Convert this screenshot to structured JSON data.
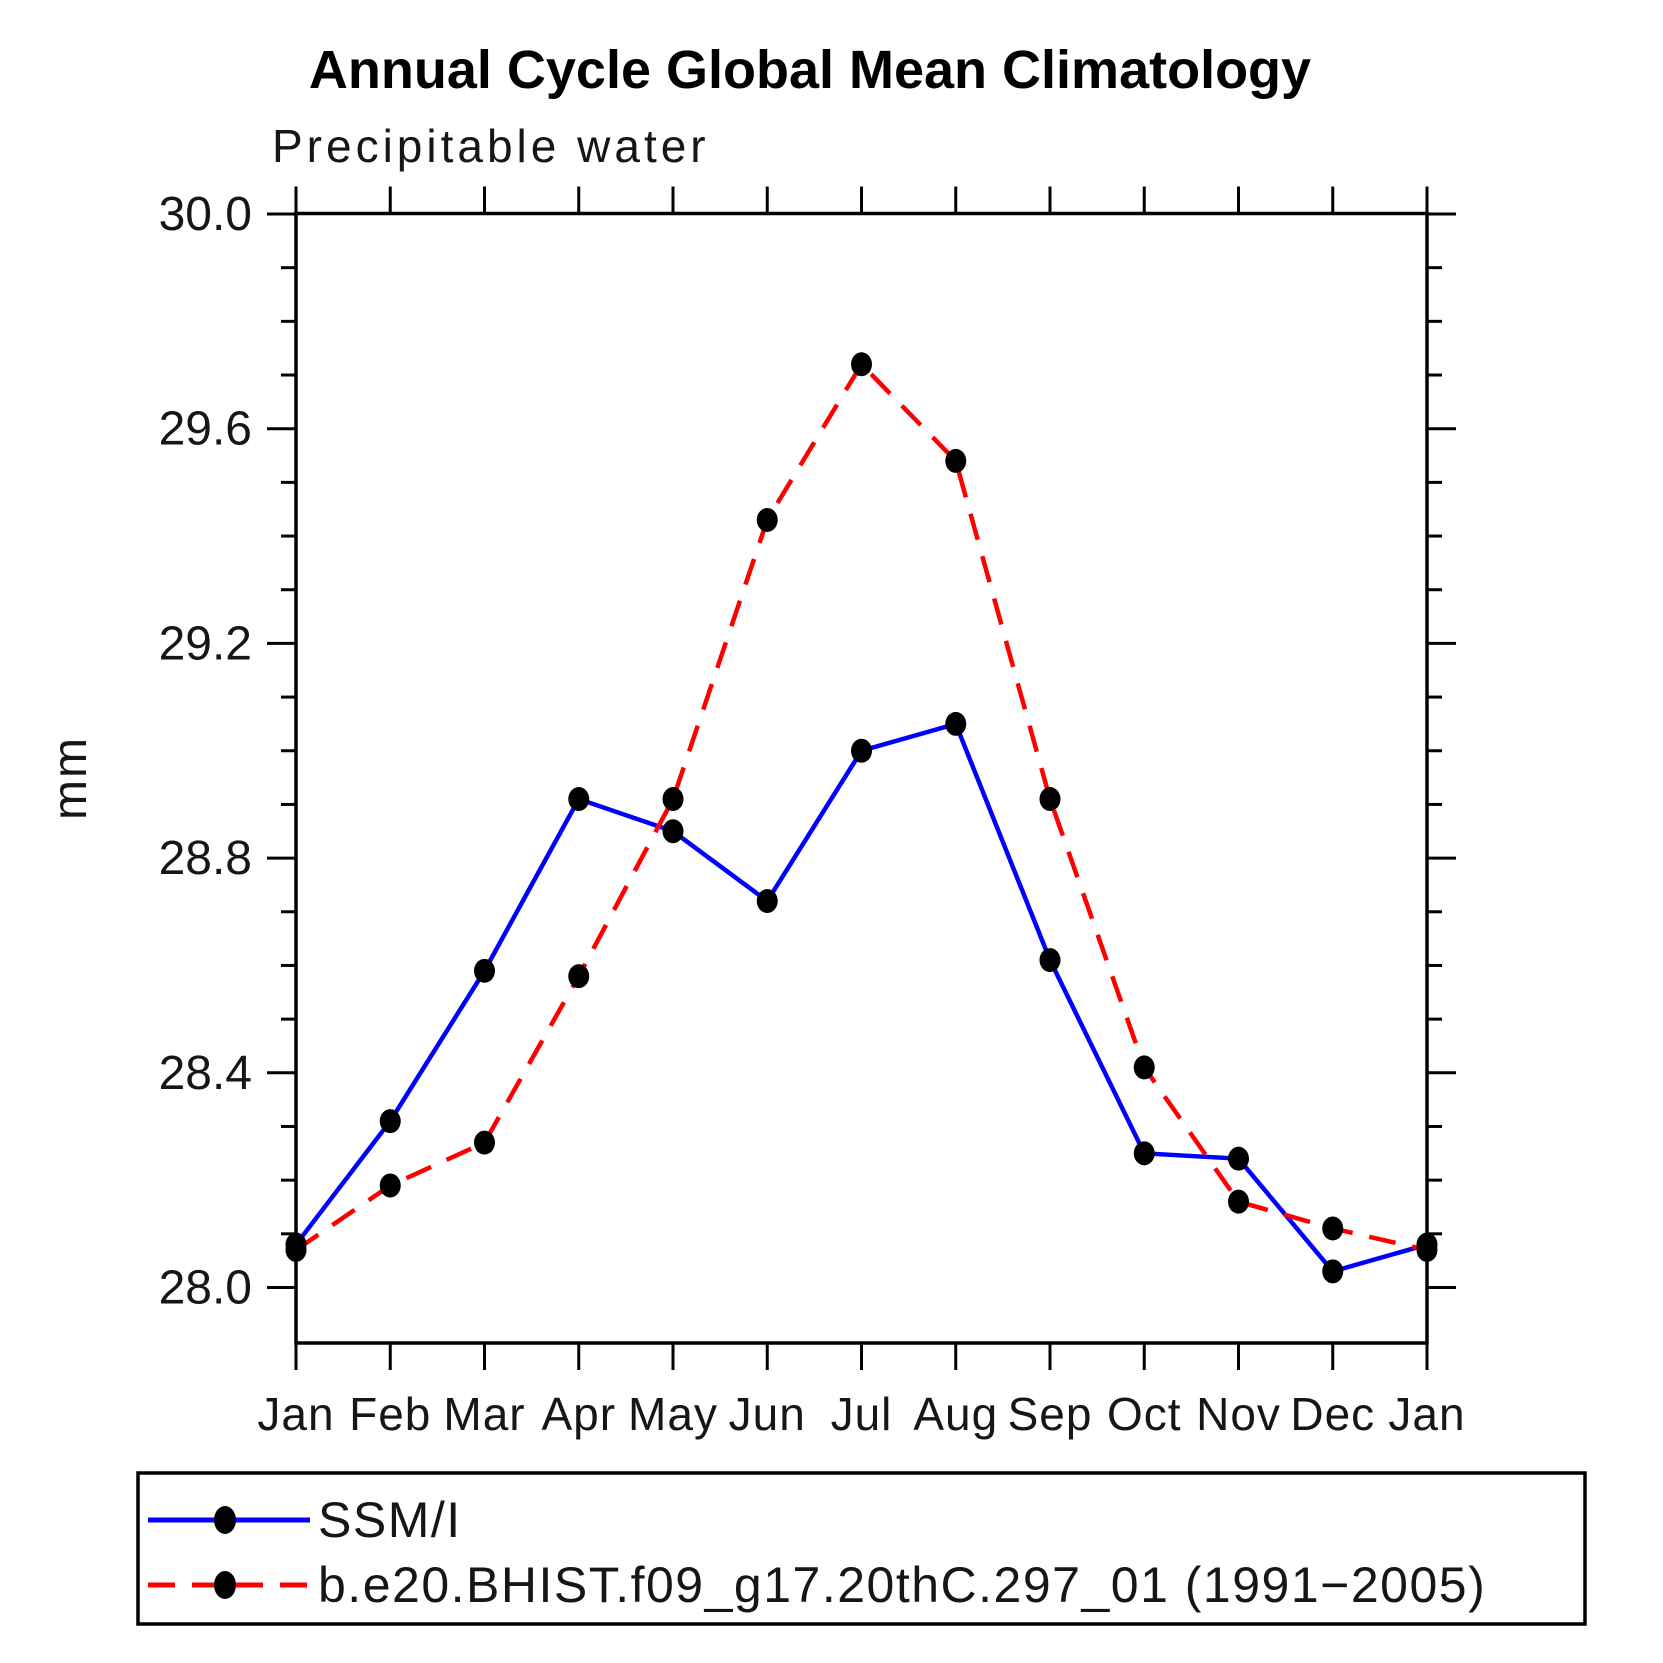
{
  "figure": {
    "title": "Annual Cycle Global Mean Climatology",
    "subtitle": "Precipitable water"
  },
  "axes": {
    "ylabel": "mm"
  },
  "legend": {
    "items": [
      {
        "label": "SSM/I"
      },
      {
        "label": "b.e20.BHIST.f09_g17.20thC.297_01 (1991−2005)"
      }
    ]
  },
  "colors": {
    "obs_line": "#0000ff",
    "model_line": "#ff0000",
    "marker": "#000000",
    "axis": "#000000",
    "background": "#ffffff"
  },
  "chart_data": {
    "type": "line",
    "title": "Annual Cycle Global Mean Climatology",
    "subtitle": "Precipitable water",
    "xlabel": "",
    "ylabel": "mm",
    "categories": [
      "Jan",
      "Feb",
      "Mar",
      "Apr",
      "May",
      "Jun",
      "Jul",
      "Aug",
      "Sep",
      "Oct",
      "Nov",
      "Dec",
      "Jan"
    ],
    "ylim": [
      27.9,
      30.0
    ],
    "yticks_major": [
      28.0,
      28.4,
      28.8,
      29.2,
      29.6,
      30.0
    ],
    "ytick_minor_step": 0.1,
    "ytick_label_format": "one_decimal",
    "grid": false,
    "legend_position": "bottom-left-box",
    "series": [
      {
        "name": "SSM/I",
        "color": "#0000ff",
        "line_style": "solid",
        "marker": "filled-circle",
        "marker_color": "#000000",
        "values": [
          28.08,
          28.31,
          28.59,
          28.91,
          28.85,
          28.72,
          29.0,
          29.05,
          28.61,
          28.25,
          28.24,
          28.03,
          28.08
        ]
      },
      {
        "name": "b.e20.BHIST.f09_g17.20thC.297_01 (1991−2005)",
        "color": "#ff0000",
        "line_style": "dashed",
        "marker": "filled-circle",
        "marker_color": "#000000",
        "values": [
          28.07,
          28.19,
          28.27,
          28.58,
          28.91,
          29.43,
          29.72,
          29.54,
          28.91,
          28.41,
          28.16,
          28.11,
          28.07
        ]
      }
    ]
  }
}
